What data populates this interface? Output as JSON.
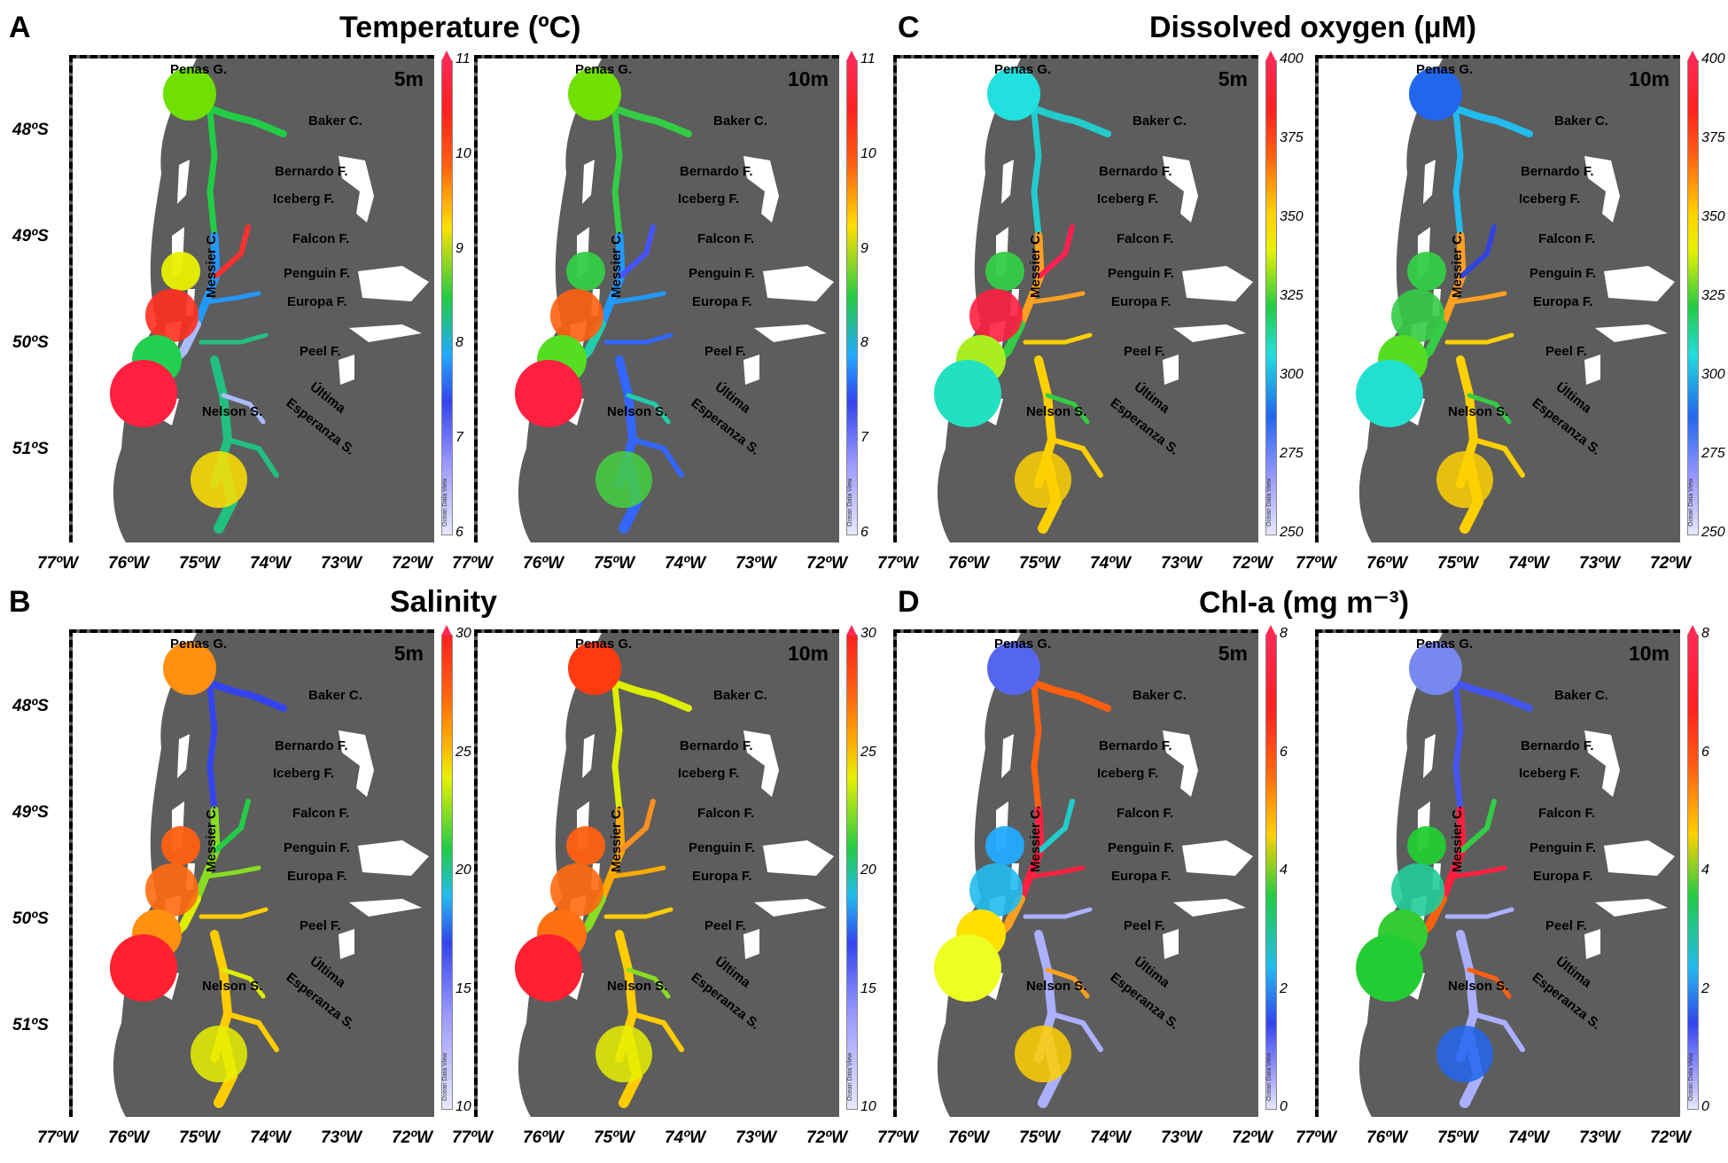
{
  "panels": {
    "A": {
      "letter": "A",
      "title": "Temperature (ºC)"
    },
    "B": {
      "letter": "B",
      "title": "Salinity"
    },
    "C": {
      "letter": "C",
      "title": "Dissolved oxygen (µM)"
    },
    "D": {
      "letter": "D",
      "title": "Chl-a (mg m⁻³)"
    }
  },
  "depths": {
    "d5": "5m",
    "d10": "10m"
  },
  "lat_labels": [
    "48ºS",
    "49ºS",
    "50ºS",
    "51ºS"
  ],
  "lon_labels": [
    "77ºW",
    "76ºW",
    "75ºW",
    "74ºW",
    "73ºW",
    "72ºW"
  ],
  "places": {
    "penas": "Penas G.",
    "baker": "Baker C.",
    "bernardo": "Bernardo F.",
    "iceberg": "Iceberg F.",
    "messier": "Messier C.",
    "falcon": "Falcon F.",
    "penguin": "Penguin F.",
    "europa": "Europa F.",
    "peel": "Peel F.",
    "nelson": "Nelson S.",
    "ultima": "Última",
    "esperanza": "Esperanza S."
  },
  "colorbars": {
    "temperature": [
      "11",
      "10",
      "9",
      "8",
      "7",
      "6"
    ],
    "salinity": [
      "30",
      "25",
      "20",
      "15",
      "10"
    ],
    "oxygen": [
      "400",
      "375",
      "350",
      "325",
      "300",
      "275",
      "250"
    ],
    "chla": [
      "8",
      "6",
      "4",
      "2",
      "0"
    ]
  },
  "odv_credit": "Ocean Data View",
  "colors": {
    "land": "#5d5d5d",
    "scale_top": "#ff2a55",
    "scale_bottom": "#e0e0ff"
  }
}
